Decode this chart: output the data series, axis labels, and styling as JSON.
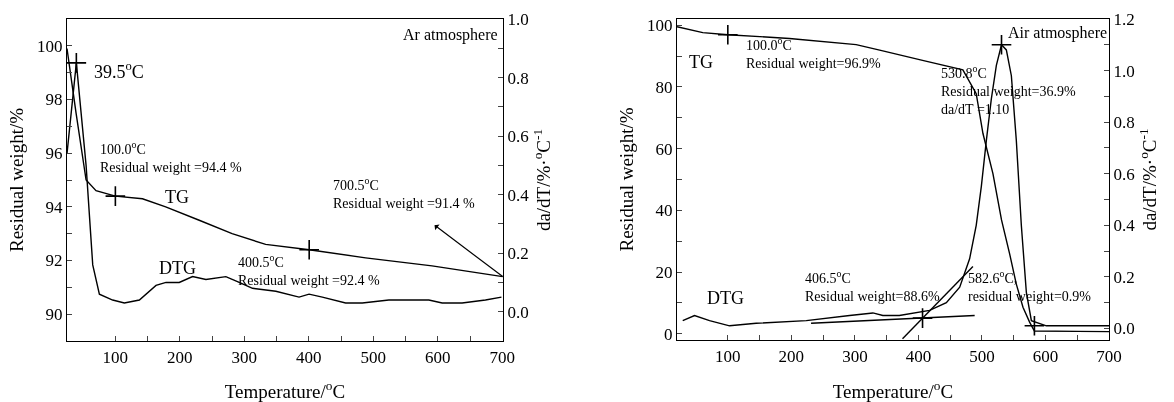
{
  "chart_data": [
    {
      "type": "line",
      "xlabel": "Temperature/$^{o}$C",
      "ylabel": "Residual weight/%",
      "y2label": "da/dT/%·$^{o}$C$^{-1}$",
      "marker": "none",
      "line_style": "solid",
      "xlim": [
        25,
        701
      ],
      "xticks": [
        100,
        {
          "value": 150,
          "label": null
        },
        200,
        {
          "value": 250,
          "label": null
        },
        300,
        {
          "value": 350,
          "label": null
        },
        400,
        {
          "value": 450,
          "label": null
        },
        500,
        {
          "value": 550,
          "label": null
        },
        600,
        {
          "value": 650,
          "label": null
        },
        700
      ],
      "ylim": [
        89,
        101
      ],
      "yticks": [
        90,
        {
          "value": 91,
          "label": null
        },
        92,
        {
          "value": 93,
          "label": null
        },
        94,
        {
          "value": 95,
          "label": null
        },
        96,
        {
          "value": 97,
          "label": null
        },
        98,
        {
          "value": 99,
          "label": null
        },
        100
      ],
      "y2lim": [
        -0.1,
        1.0
      ],
      "y2ticks": [
        {
          "value": 0,
          "label": "0.0"
        },
        {
          "value": 0.1,
          "label": null
        },
        0.2,
        {
          "value": 0.3,
          "label": null
        },
        0.4,
        {
          "value": 0.5,
          "label": null
        },
        0.6,
        {
          "value": 0.7,
          "label": null
        },
        0.8,
        {
          "value": 0.9,
          "label": null
        },
        {
          "value": 1,
          "label": "1.0"
        }
      ],
      "annotations": [
        "Ar atmosphere",
        "39.5$^{o}$C",
        "100.0$^{o}$C\nResidual weight =94.4 %",
        "400.5$^{o}$C\nResidual weight =92.4 %",
        {
          "text": "700.5$^{o}$C\nResidual weight =91.4 %",
          "x": 700.5,
          "y": 91.4
        }
      ],
      "series": [
        {
          "name": "TG",
          "color": "#000000",
          "x": [
            25,
            39,
            54.6,
            70,
            100,
            142,
            178,
            230,
            281,
            333,
            400.5,
            488,
            591,
            700.5
          ],
          "values": [
            99.9,
            97.5,
            95.0,
            94.6,
            94.4,
            94.3,
            94.0,
            93.5,
            93.0,
            92.6,
            92.4,
            92.1,
            91.8,
            91.4
          ]
        },
        {
          "name": "DTG",
          "color": "#000000",
          "axis": "y2",
          "x": [
            25,
            39.5,
            54.6,
            64.9,
            75.2,
            95.8,
            113.9,
            137.2,
            163,
            178.5,
            199,
            219.7,
            240.4,
            271.3,
            292,
            312.6,
            348.8,
            384.8,
            400.3,
            420.9,
            457,
            482.8,
            524,
            555,
            586,
            606.7,
            637.6,
            673.8,
            698.6
          ],
          "values": [
            0.54,
            0.85,
            0.5,
            0.16,
            0.06,
            0.04,
            0.03,
            0.04,
            0.09,
            0.1,
            0.1,
            0.12,
            0.11,
            0.12,
            0.1,
            0.08,
            0.07,
            0.05,
            0.06,
            0.05,
            0.03,
            0.03,
            0.04,
            0.04,
            0.04,
            0.03,
            0.03,
            0.04,
            0.05
          ]
        },
        {
          "type": "scatter",
          "marker": "cross",
          "color": "#000000",
          "x": [
            100,
            400.5
          ],
          "values": [
            94.4,
            92.4
          ]
        },
        {
          "type": "scatter",
          "marker": "cross",
          "color": "#000000",
          "axis": "y2",
          "x": [
            39.5
          ],
          "values": [
            0.85
          ]
        }
      ]
    },
    {
      "type": "line",
      "xlabel": "Temperature/$^{o}$C",
      "ylabel": "Residual weight/%",
      "y2label": "da/dT/%·$^{o}$C$^{-1}$",
      "marker": "none",
      "line_style": "solid",
      "xlim": [
        20,
        700
      ],
      "xticks": [
        100,
        {
          "value": 150,
          "label": null
        },
        200,
        {
          "value": 250,
          "label": null
        },
        300,
        {
          "value": 350,
          "label": null
        },
        400,
        {
          "value": 450,
          "label": null
        },
        500,
        {
          "value": 550,
          "label": null
        },
        600,
        {
          "value": 650,
          "label": null
        },
        700
      ],
      "ylim": [
        -2,
        102
      ],
      "yticks": [
        0,
        {
          "value": 10,
          "label": null
        },
        20,
        {
          "value": 30,
          "label": null
        },
        40,
        {
          "value": 50,
          "label": null
        },
        60,
        {
          "value": 70,
          "label": null
        },
        80,
        {
          "value": 90,
          "label": null
        },
        100
      ],
      "y2lim": [
        -0.045,
        1.2
      ],
      "y2ticks": [
        {
          "value": 0,
          "label": "0.0"
        },
        {
          "value": 0.1,
          "label": null
        },
        0.2,
        {
          "value": 0.3,
          "label": null
        },
        0.4,
        {
          "value": 0.5,
          "label": null
        },
        0.6,
        {
          "value": 0.7,
          "label": null
        },
        0.8,
        {
          "value": 0.9,
          "label": null
        },
        {
          "value": 1,
          "label": "1.0"
        },
        {
          "value": 1.1,
          "label": null
        },
        1.2
      ],
      "annotations": [
        "Air atmosphere",
        "100.0$^{o}$C\nResidual weight=96.9%",
        "406.5$^{o}$C\nResidual weight=88.6%",
        "530.8$^{o}$C\nResidual weight=36.9%\nda/dT =1.10",
        "582.6$^{o}$C,\nresidual weight=0.9%"
      ],
      "series": [
        {
          "name": "TG",
          "color": "#000000",
          "x": [
            20,
            60.6,
            100,
            197,
            302,
            339,
            406.5,
            470,
            491,
            501.6,
            517.3,
            530.8,
            543.6,
            554,
            564.6,
            575,
            582.6,
            650,
            700
          ],
          "values": [
            99.5,
            97.6,
            96.9,
            95.7,
            93.7,
            91.9,
            88.6,
            85.5,
            77.8,
            64.9,
            51.9,
            36.9,
            25.9,
            16.2,
            8.6,
            3.8,
            0.9,
            0.8,
            0.7
          ]
        },
        {
          "name": "DTG",
          "color": "#000000",
          "axis": "y2",
          "x": [
            29,
            47.6,
            71.2,
            102.7,
            144.7,
            223.5,
            291.7,
            328.4,
            344,
            370,
            417.6,
            444,
            465,
            480.6,
            491,
            499,
            507,
            514.8,
            522.7,
            530.8,
            538.4,
            546.3,
            554.1,
            562,
            569.9,
            577.8,
            601.4,
            653.9,
            700
          ],
          "values": [
            0.03,
            0.05,
            0.03,
            0.01,
            0.02,
            0.03,
            0.05,
            0.06,
            0.05,
            0.05,
            0.07,
            0.1,
            0.16,
            0.27,
            0.4,
            0.55,
            0.73,
            0.89,
            1.02,
            1.1,
            1.08,
            0.98,
            0.73,
            0.4,
            0.14,
            0.03,
            0.01,
            0.01,
            0.01
          ]
        },
        {
          "type": "line",
          "color": "#000000",
          "axis": "y2",
          "x": [
            231,
            488.5
          ],
          "values": [
            0.02,
            0.05
          ]
        },
        {
          "type": "line",
          "color": "#000000",
          "axis": "y2",
          "x": [
            375,
            485.8
          ],
          "values": [
            -0.04,
            0.24
          ]
        },
        {
          "type": "scatter",
          "marker": "cross",
          "color": "#000000",
          "x": [
            100
          ],
          "values": [
            96.9
          ]
        },
        {
          "type": "scatter",
          "marker": "cross",
          "color": "#000000",
          "axis": "y2",
          "x": [
            406.5,
            530.8,
            582.6
          ],
          "values": [
            0.04,
            1.1,
            0.01
          ]
        }
      ]
    }
  ]
}
